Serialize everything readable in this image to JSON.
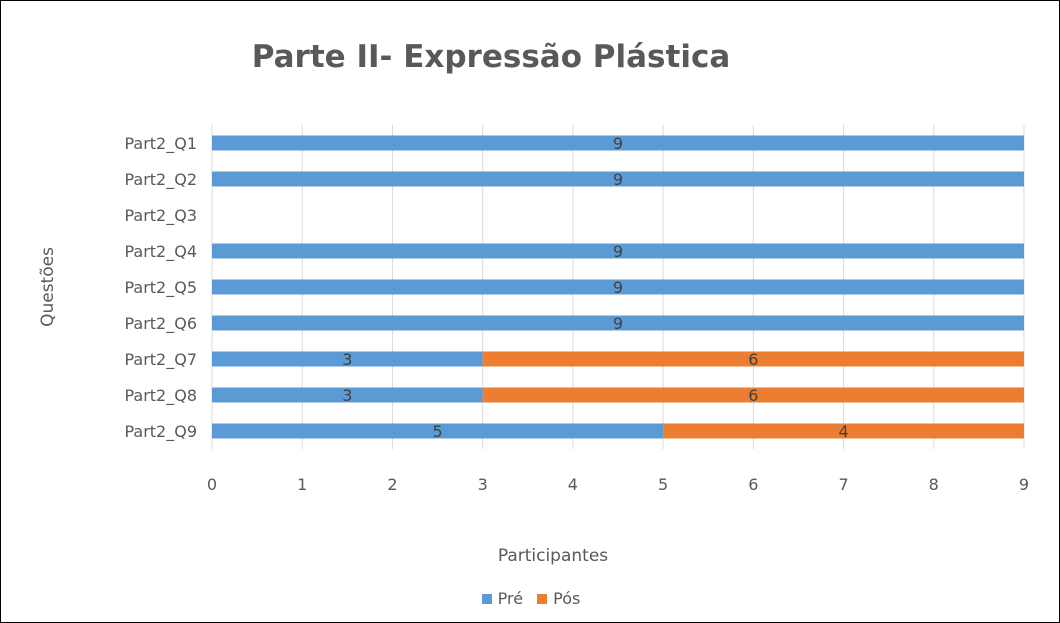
{
  "chart_data": {
    "type": "bar",
    "orientation": "horizontal",
    "stacked": true,
    "title": "Parte II- Expressão Plástica",
    "xlabel": "Participantes",
    "ylabel": "Questões",
    "xlim": [
      0,
      9
    ],
    "xticks": [
      "0",
      "1",
      "2",
      "3",
      "4",
      "5",
      "6",
      "7",
      "8",
      "9"
    ],
    "grid": true,
    "legend_position": "bottom",
    "categories": [
      "Part2_Q1",
      "Part2_Q2",
      "Part2_Q3",
      "Part2_Q4",
      "Part2_Q5",
      "Part2_Q6",
      "Part2_Q7",
      "Part2_Q8",
      "Part2_Q9"
    ],
    "series": [
      {
        "name": "Pré",
        "color": "#5B9BD5",
        "values": [
          9,
          9,
          0,
          9,
          9,
          9,
          3,
          3,
          5
        ]
      },
      {
        "name": "Pós",
        "color": "#ED7D31",
        "values": [
          0,
          0,
          0,
          0,
          0,
          0,
          6,
          6,
          4
        ]
      }
    ]
  }
}
